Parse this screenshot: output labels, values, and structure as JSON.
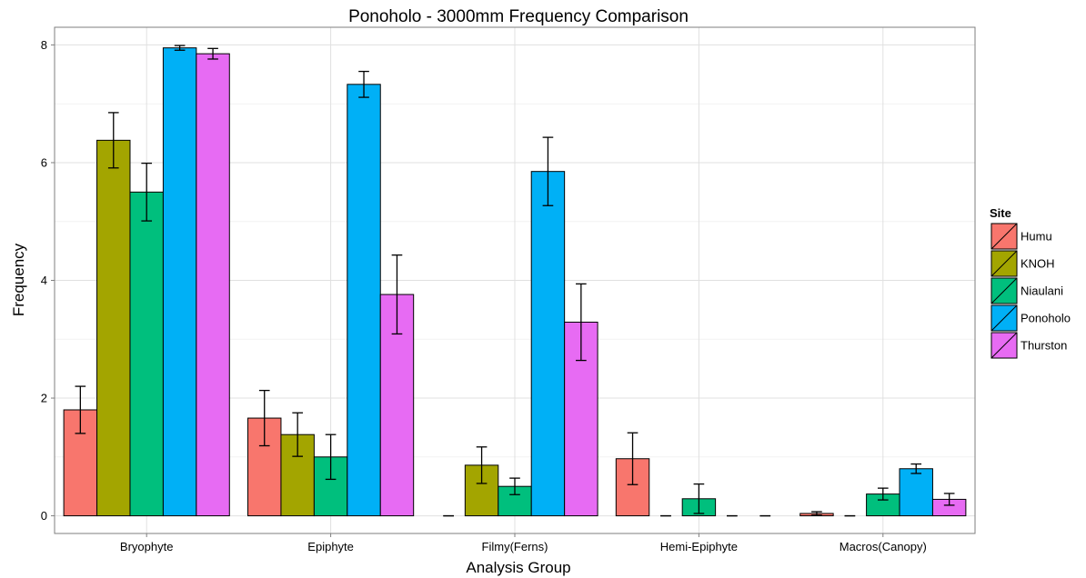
{
  "chart_data": {
    "type": "bar",
    "title": "Ponoholo - 3000mm Frequency Comparison",
    "xlabel": "Analysis Group",
    "ylabel": "Frequency",
    "categories": [
      "Bryophyte",
      "Epiphyte",
      "Filmy(Ferns)",
      "Hemi-Epiphyte",
      "Macros(Canopy)"
    ],
    "ylim": [
      -0.3,
      8.3
    ],
    "yticks": [
      0,
      2,
      4,
      6,
      8
    ],
    "grid": true,
    "legend": {
      "title": "Site",
      "position": "right"
    },
    "series": [
      {
        "name": "Humu",
        "color": "#F8766D",
        "values": [
          1.8,
          1.66,
          0.0,
          0.97,
          0.04
        ],
        "err": [
          0.4,
          0.47,
          0.0,
          0.44,
          0.03
        ]
      },
      {
        "name": "KNOH",
        "color": "#A3A500",
        "values": [
          6.38,
          1.38,
          0.86,
          0.0,
          0.0
        ],
        "err": [
          0.47,
          0.37,
          0.31,
          0.0,
          0.0
        ]
      },
      {
        "name": "Niaulani",
        "color": "#00BF7D",
        "values": [
          5.5,
          1.0,
          0.5,
          0.29,
          0.37
        ],
        "err": [
          0.49,
          0.38,
          0.14,
          0.25,
          0.1
        ]
      },
      {
        "name": "Ponoholo",
        "color": "#00B0F6",
        "values": [
          7.95,
          7.33,
          5.85,
          0.0,
          0.8
        ],
        "err": [
          0.04,
          0.22,
          0.58,
          0.0,
          0.08
        ]
      },
      {
        "name": "Thurston",
        "color": "#E76BF3",
        "values": [
          7.85,
          3.76,
          3.29,
          0.0,
          0.28
        ],
        "err": [
          0.09,
          0.67,
          0.65,
          0.0,
          0.1
        ]
      }
    ]
  }
}
